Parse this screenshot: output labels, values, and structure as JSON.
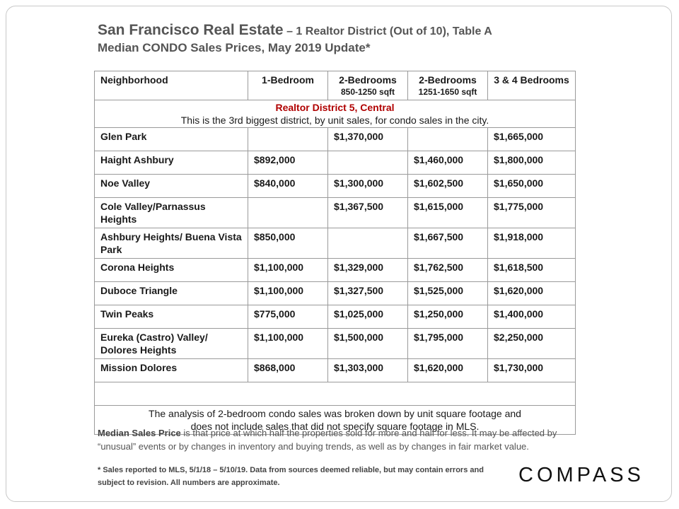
{
  "header": {
    "title_main": "San Francisco Real Estate",
    "title_sub": " – 1 Realtor District (Out of 10), Table A",
    "title_line2": "Median CONDO Sales Prices, May 2019 Update*"
  },
  "table": {
    "columns": [
      {
        "label": "Neighborhood",
        "sub": ""
      },
      {
        "label": "1-Bedroom",
        "sub": ""
      },
      {
        "label": "2-Bedrooms",
        "sub": "850-1250 sqft"
      },
      {
        "label": "2-Bedrooms",
        "sub": "1251-1650 sqft"
      },
      {
        "label": "3 & 4 Bedrooms",
        "sub": ""
      }
    ],
    "district_title": "Realtor District 5, Central",
    "district_desc": "This is the 3rd biggest district, by unit sales, for condo sales in the city.",
    "rows": [
      {
        "name": "Glen Park",
        "v1": "",
        "v2": "$1,370,000",
        "v3": "",
        "v4": "$1,665,000"
      },
      {
        "name": "Haight Ashbury",
        "v1": "$892,000",
        "v2": "",
        "v3": "$1,460,000",
        "v4": "$1,800,000"
      },
      {
        "name": "Noe Valley",
        "v1": "$840,000",
        "v2": "$1,300,000",
        "v3": "$1,602,500",
        "v4": "$1,650,000"
      },
      {
        "name": "Cole Valley/Parnassus Heights",
        "v1": "",
        "v2": "$1,367,500",
        "v3": "$1,615,000",
        "v4": "$1,775,000"
      },
      {
        "name": "Ashbury Heights/ Buena Vista Park",
        "v1": "$850,000",
        "v2": "",
        "v3": "$1,667,500",
        "v4": "$1,918,000"
      },
      {
        "name": "Corona Heights",
        "v1": "$1,100,000",
        "v2": "$1,329,000",
        "v3": "$1,762,500",
        "v4": "$1,618,500"
      },
      {
        "name": "Duboce Triangle",
        "v1": "$1,100,000",
        "v2": "$1,327,500",
        "v3": "$1,525,000",
        "v4": "$1,620,000"
      },
      {
        "name": "Twin Peaks",
        "v1": "$775,000",
        "v2": "$1,025,000",
        "v3": "$1,250,000",
        "v4": "$1,400,000"
      },
      {
        "name": "Eureka (Castro) Valley/ Dolores Heights",
        "v1": "$1,100,000",
        "v2": "$1,500,000",
        "v3": "$1,795,000",
        "v4": "$2,250,000"
      },
      {
        "name": "Mission Dolores",
        "v1": "$868,000",
        "v2": "$1,303,000",
        "v3": "$1,620,000",
        "v4": "$1,730,000"
      }
    ],
    "note_line1": "The analysis of 2-bedroom condo sales was broken down by unit square footage and",
    "note_line2": "does not include sales that did not specify square footage in MLS."
  },
  "footer": {
    "median_term": "Median Sales Price",
    "median_def": " is that price at which half the properties sold for more and half for less. It may be affected by “unusual” events or by changes in inventory and buying trends, as well as by changes in fair market value.",
    "disclaimer": "* Sales reported to MLS, 5/1/18 – 5/10/19. Data from sources deemed reliable, but may contain errors and subject to revision.  All numbers are approximate.",
    "logo": "COMPASS"
  }
}
